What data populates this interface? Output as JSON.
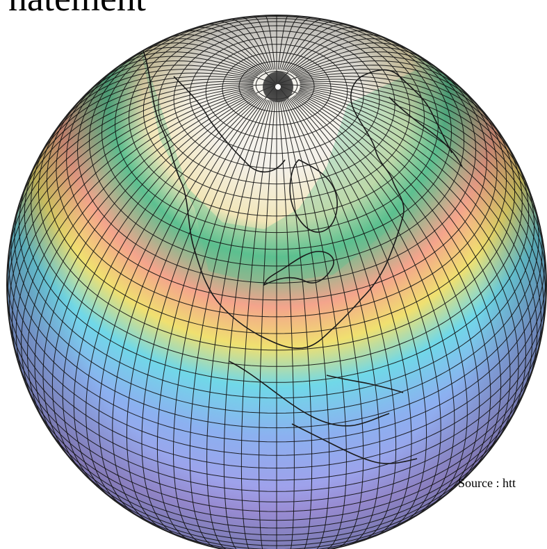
{
  "heading": {
    "text": "natement"
  },
  "source": {
    "text": "Source : htt"
  },
  "colors": {
    "polar": "#f4f1ea",
    "cream": "#f2e6b8",
    "green": "#5cc090",
    "salmon": "#f4a48c",
    "yellow": "#f0e070",
    "cyan": "#70d8e8",
    "blue": "#8cb0f0",
    "violet": "#a89ae8",
    "coast": "#1a1a1a",
    "grid": "#111111"
  }
}
